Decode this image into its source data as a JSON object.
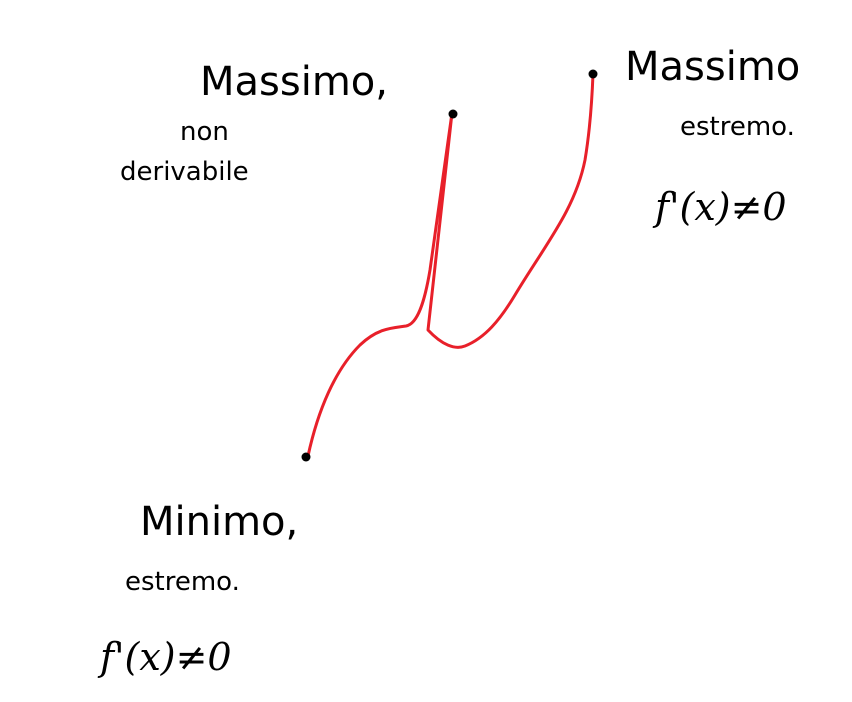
{
  "colors": {
    "curve": "#e8202a",
    "ink": "#000000",
    "background": "#ffffff"
  },
  "labels": {
    "max_nonderiv": {
      "line1": "Massimo,",
      "line2": "non",
      "line3": "derivabile"
    },
    "max_extreme": {
      "line1": "Massimo",
      "line2": "estremo.",
      "line3": "f'(x)≠0"
    },
    "min_extreme": {
      "line1": "Minimo,",
      "line2": "estremo.",
      "line3": "f'(x)≠0"
    }
  }
}
